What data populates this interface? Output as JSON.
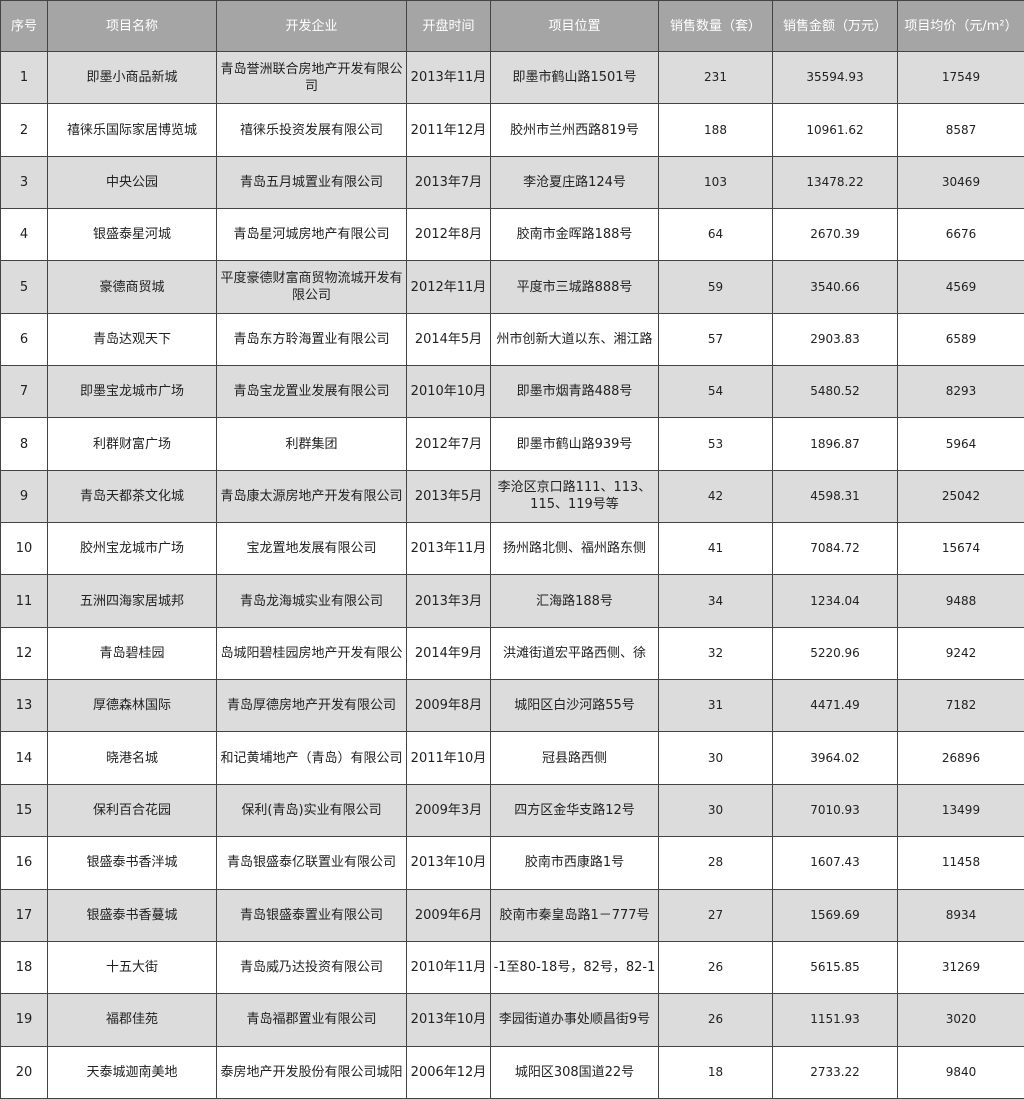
{
  "table": {
    "header": [
      "序号",
      "项目名称",
      "开发企业",
      "开盘时间",
      "项目位置",
      "销售数量（套）",
      "销售金额（万元）",
      "项目均价（元/m²）"
    ],
    "rows": [
      [
        "1",
        "即墨小商品新城",
        "青岛誉洲联合房地产开发有限公司",
        "2013年11月",
        "即墨市鹤山路1501号",
        "231",
        "35594.93",
        "17549"
      ],
      [
        "2",
        "禧徕乐国际家居博览城",
        "禧徕乐投资发展有限公司",
        "2011年12月",
        "胶州市兰州西路819号",
        "188",
        "10961.62",
        "8587"
      ],
      [
        "3",
        "中央公园",
        "青岛五月城置业有限公司",
        "2013年7月",
        "李沧夏庄路124号",
        "103",
        "13478.22",
        "30469"
      ],
      [
        "4",
        "银盛泰星河城",
        "青岛星河城房地产有限公司",
        "2012年8月",
        "胶南市金晖路188号",
        "64",
        "2670.39",
        "6676"
      ],
      [
        "5",
        "豪德商贸城",
        "平度豪德财富商贸物流城开发有限公司",
        "2012年11月",
        "平度市三城路888号",
        "59",
        "3540.66",
        "4569"
      ],
      [
        "6",
        "青岛达观天下",
        "青岛东方聆海置业有限公司",
        "2014年5月",
        "州市创新大道以东、湘江路",
        "57",
        "2903.83",
        "6589"
      ],
      [
        "7",
        "即墨宝龙城市广场",
        "青岛宝龙置业发展有限公司",
        "2010年10月",
        "即墨市烟青路488号",
        "54",
        "5480.52",
        "8293"
      ],
      [
        "8",
        "利群财富广场",
        "利群集团",
        "2012年7月",
        "即墨市鹤山路939号",
        "53",
        "1896.87",
        "5964"
      ],
      [
        "9",
        "青岛天都茶文化城",
        "青岛康太源房地产开发有限公司",
        "2013年5月",
        "李沧区京口路111、113、115、119号等",
        "42",
        "4598.31",
        "25042"
      ],
      [
        "10",
        "胶州宝龙城市广场",
        "宝龙置地发展有限公司",
        "2013年11月",
        "扬州路北侧、福州路东侧",
        "41",
        "7084.72",
        "15674"
      ],
      [
        "11",
        "五洲四海家居城邦",
        "青岛龙海城实业有限公司",
        "2013年3月",
        "汇海路188号",
        "34",
        "1234.04",
        "9488"
      ],
      [
        "12",
        "青岛碧桂园",
        "岛城阳碧桂园房地产开发有限公",
        "2014年9月",
        "洪滩街道宏平路西侧、徐",
        "32",
        "5220.96",
        "9242"
      ],
      [
        "13",
        "厚德森林国际",
        "青岛厚德房地产开发有限公司",
        "2009年8月",
        "城阳区白沙河路55号",
        "31",
        "4471.49",
        "7182"
      ],
      [
        "14",
        "晓港名城",
        "和记黄埔地产（青岛）有限公司",
        "2011年10月",
        "冠县路西侧",
        "30",
        "3964.02",
        "26896"
      ],
      [
        "15",
        "保利百合花园",
        "保利(青岛)实业有限公司",
        "2009年3月",
        "四方区金华支路12号",
        "30",
        "7010.93",
        "13499"
      ],
      [
        "16",
        "银盛泰书香泮城",
        "青岛银盛泰亿联置业有限公司",
        "2013年10月",
        "胶南市西康路1号",
        "28",
        "1607.43",
        "11458"
      ],
      [
        "17",
        "银盛泰书香蔓城",
        "青岛银盛泰置业有限公司",
        "2009年6月",
        "胶南市秦皇岛路1－777号",
        "27",
        "1569.69",
        "8934"
      ],
      [
        "18",
        "十五大街",
        "青岛威乃达投资有限公司",
        "2010年11月",
        "-1至80-18号，82号，82-1",
        "26",
        "5615.85",
        "31269"
      ],
      [
        "19",
        "福郡佳苑",
        "青岛福郡置业有限公司",
        "2013年10月",
        "李园街道办事处顺昌街9号",
        "26",
        "1151.93",
        "3020"
      ],
      [
        "20",
        "天泰城迦南美地",
        "泰房地产开发股份有限公司城阳",
        "2006年12月",
        "城阳区308国道22号",
        "18",
        "2733.22",
        "9840"
      ]
    ]
  }
}
